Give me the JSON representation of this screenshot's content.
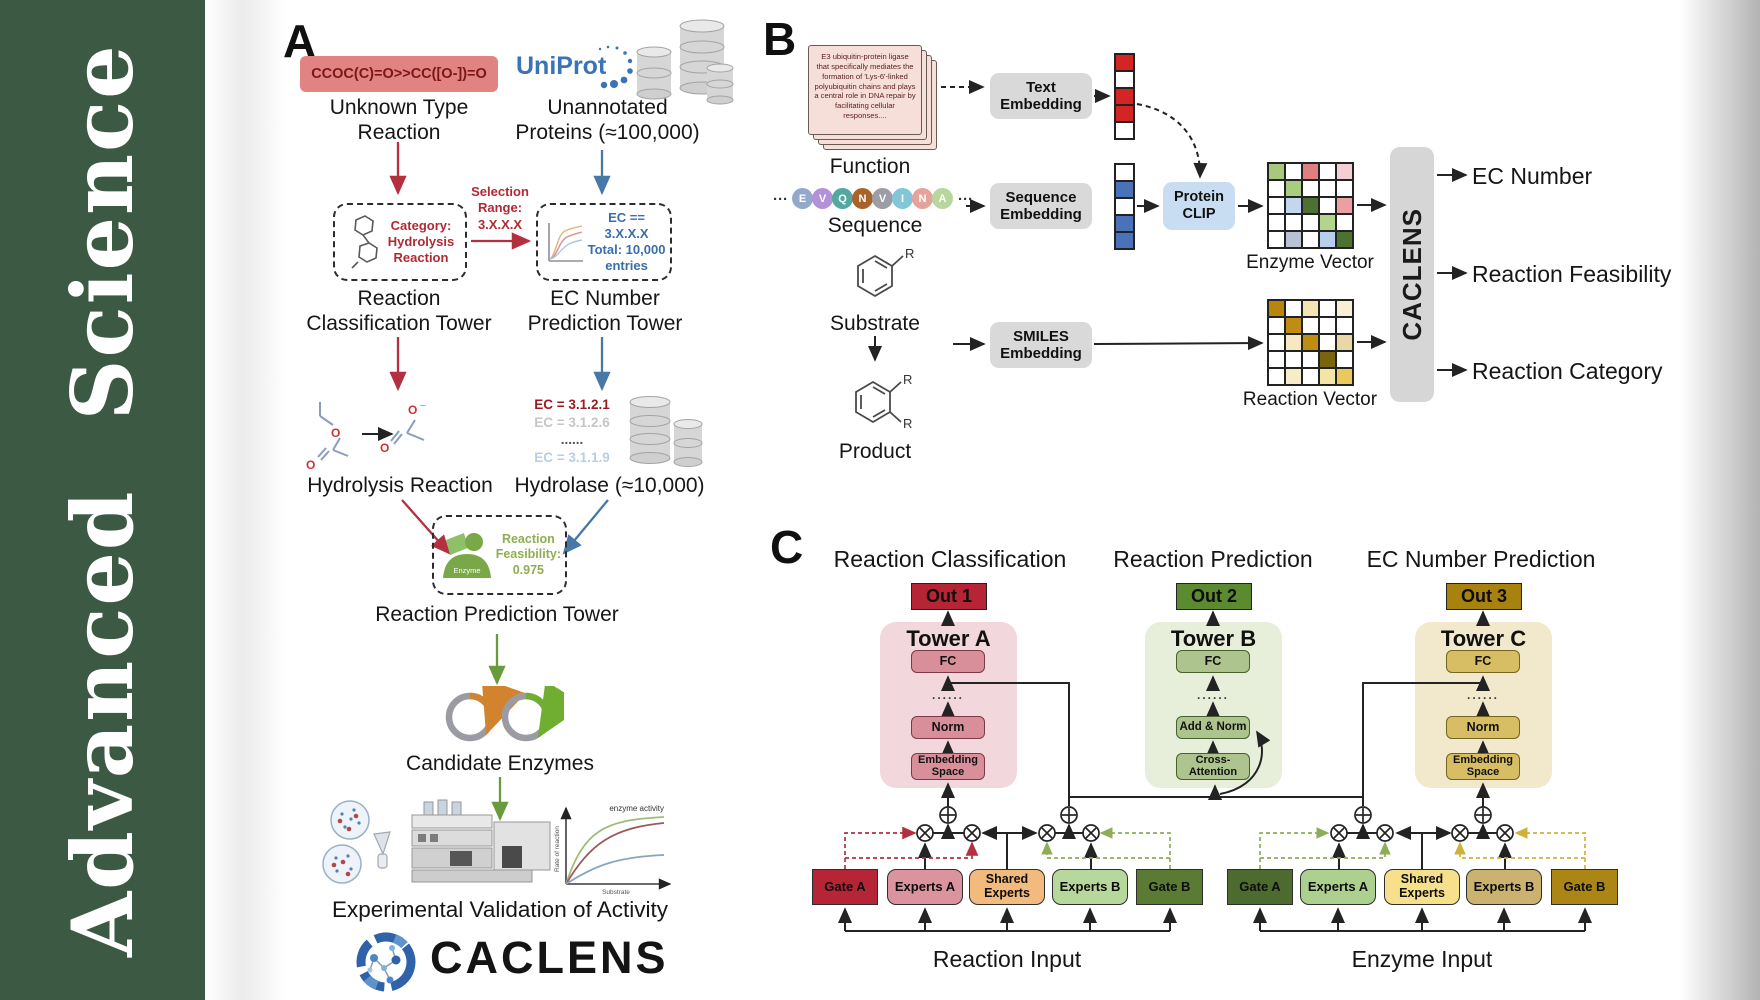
{
  "journal": {
    "title": "Advanced Science"
  },
  "panel_a": {
    "label": "A",
    "smiles": "CCOC(C)=O>>CC([O-])=O",
    "unknown_caption": "Unknown Type\nReaction",
    "uniprot": "UniProt",
    "unannotated_caption": "Unannotated\nProteins (≈100,000)",
    "category_note": "Category:\nHydrolysis\nReaction",
    "selection_note": "Selection\nRange:\n3.X.X.X",
    "ec_note": "EC == 3.X.X.X\nTotal: 10,000\nentries",
    "classification_caption": "Reaction\nClassification Tower",
    "ec_tower_caption": "EC Number\nPrediction Tower",
    "hydrolysis_caption": "Hydrolysis Reaction",
    "ec_list": [
      "EC = 3.1.2.1",
      "EC = 3.1.2.6",
      "......",
      "EC = 3.1.1.9"
    ],
    "hydrolase_caption": "Hydrolase (≈10,000)",
    "enzyme_label": "Enzyme",
    "feasibility_note": "Reaction\nFeasibility:\n0.975",
    "prediction_tower_caption": "Reaction Prediction Tower",
    "candidate_caption": "Candidate Enzymes",
    "validation_caption": "Experimental Validation of Activity",
    "graph": {
      "title": "enzyme activity",
      "ylabel": "Rate of reaction",
      "xlabel": "Substrate"
    },
    "brand": "CACLENS"
  },
  "panel_b": {
    "label": "B",
    "function_text": "E3 ubiquitin-protein ligase that specifically mediates the formation of 'Lys-6'-linked polyubiquitin chains and plays a central role in DNA repair by facilitating cellular responses....",
    "function_caption": "Function",
    "ellipsis": "···",
    "sequence_residues": [
      {
        "letter": "E",
        "color": "#93a9c9"
      },
      {
        "letter": "V",
        "color": "#b491d6"
      },
      {
        "letter": "Q",
        "color": "#53a8a2"
      },
      {
        "letter": "N",
        "color": "#a9622a"
      },
      {
        "letter": "V",
        "color": "#9d9da5"
      },
      {
        "letter": "I",
        "color": "#82c6d8"
      },
      {
        "letter": "N",
        "color": "#e5a49b"
      },
      {
        "letter": "A",
        "color": "#b8d69e"
      }
    ],
    "sequence_caption": "Sequence",
    "substrate_caption": "Substrate",
    "product_caption": "Product",
    "r_group": "R",
    "text_embedding_label": "Text\nEmbedding",
    "sequence_embedding_label": "Sequence\nEmbedding",
    "smiles_embedding_label": "SMILES\nEmbedding",
    "protein_clip_label": "Protein\nCLIP",
    "text_vector_cells": [
      "#d42424",
      "#ffffff",
      "#d42424",
      "#d42424",
      "#ffffff"
    ],
    "sequence_vector_cells": [
      "#ffffff",
      "#4a72b8",
      "#ffffff",
      "#4a72b8",
      "#4a72b8"
    ],
    "enzyme_vector": {
      "caption": "Enzyme Vector",
      "cells": [
        "#a9c77d",
        "#ffffff",
        "#e07f7f",
        "#ffffff",
        "#f3ced2",
        "#ffffff",
        "#a9cc80",
        "#ffffff",
        "#ffffff",
        "#ffffff",
        "#ffffff",
        "#c3d6ec",
        "#4e7030",
        "#ffffff",
        "#eb9fa2",
        "#ffffff",
        "#ffffff",
        "#ffffff",
        "#b2d48b",
        "#ffffff",
        "#ffffff",
        "#b7c3d4",
        "#ffffff",
        "#b9cdec",
        "#4e7030"
      ]
    },
    "reaction_vector": {
      "caption": "Reaction Vector",
      "cells": [
        "#b8860f",
        "#ffffff",
        "#f3e4b4",
        "#ffffff",
        "#f8efd5",
        "#ffffff",
        "#bf8d15",
        "#ffffff",
        "#ffffff",
        "#ffffff",
        "#ffffff",
        "#f5e8c2",
        "#bf8d12",
        "#ffffff",
        "#e8d8a5",
        "#ffffff",
        "#ffffff",
        "#ffffff",
        "#7a6410",
        "#ffffff",
        "#ffffff",
        "#f6ecca",
        "#ffffff",
        "#f3e5a5",
        "#e9c85e"
      ]
    },
    "caclens_label": "CACLENS",
    "outputs": [
      "EC Number",
      "Reaction Feasibility",
      "Reaction Category"
    ]
  },
  "panel_c": {
    "label": "C",
    "headings": [
      "Reaction Classification",
      "Reaction Prediction",
      "EC Number Prediction"
    ],
    "outs": [
      "Out 1",
      "Out 2",
      "Out 3"
    ],
    "tower_a": {
      "title": "Tower A",
      "fc": "FC",
      "dots": "......",
      "norm": "Norm",
      "embed": "Embedding\nSpace"
    },
    "tower_b": {
      "title": "Tower B",
      "fc": "FC",
      "dots": "......",
      "norm": "Add & Norm",
      "attn": "Cross-\nAttention"
    },
    "tower_c": {
      "title": "Tower C",
      "fc": "FC",
      "dots": "......",
      "norm": "Norm",
      "embed": "Embedding\nSpace"
    },
    "reaction_moe": {
      "gate_a": "Gate A",
      "experts_a": "Experts A",
      "shared": "Shared\nExperts",
      "experts_b": "Experts B",
      "gate_b": "Gate B",
      "input": "Reaction Input"
    },
    "enzyme_moe": {
      "gate_a": "Gate A",
      "experts_a": "Experts A",
      "shared": "Shared\nExperts",
      "experts_b": "Experts B",
      "gate_b": "Gate B",
      "input": "Enzyme Input"
    }
  }
}
